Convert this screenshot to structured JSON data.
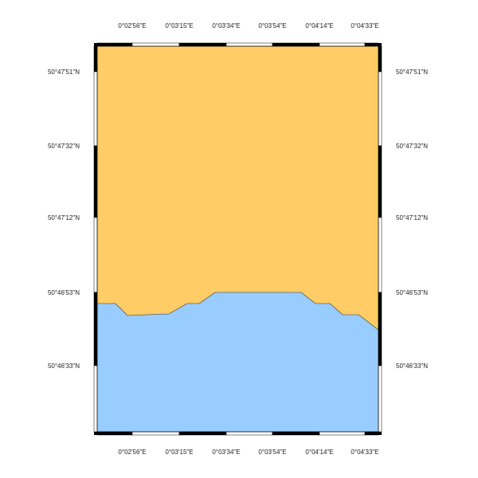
{
  "map": {
    "colors": {
      "land": "#FFCC66",
      "water": "#99CCFF",
      "frame_dark": "#000000",
      "frame_light": "#ffffff",
      "coast": "#333333"
    },
    "lon_labels": [
      "0°02'56\"E",
      "0°03'15\"E",
      "0°03'34\"E",
      "0°03'54\"E",
      "0°04'14\"E",
      "0°04'33\"E"
    ],
    "lat_labels": [
      "50°47'51\"N",
      "50°47'32\"N",
      "50°47'12\"N",
      "50°46'53\"N",
      "50°46'33\"N"
    ]
  }
}
